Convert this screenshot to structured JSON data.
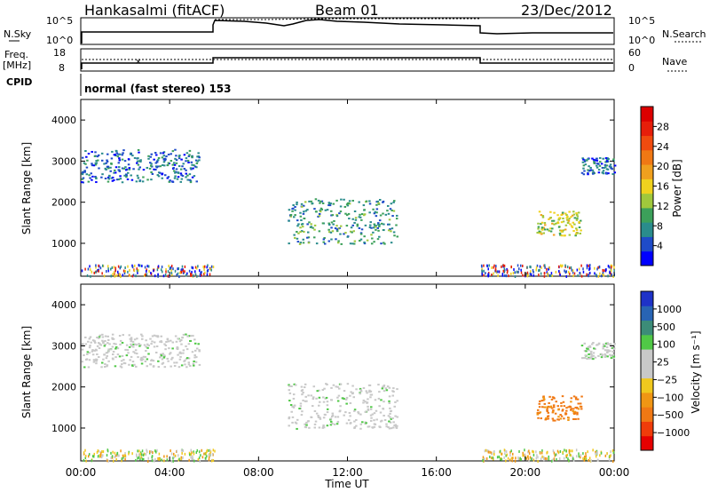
{
  "header": {
    "station": "Hankasalmi (fitACF)",
    "beam": "Beam 01",
    "date": "23/Dec/2012"
  },
  "noise_panel": {
    "left_label": "N.Sky",
    "right_label": "N.Search",
    "left_top_tick": "10^5",
    "left_bottom_tick": "10^0",
    "right_top_tick": "10^5",
    "right_bottom_tick": "10^0"
  },
  "freq_panel": {
    "left_label_1": "Freq.",
    "left_label_2": "[MHz]",
    "right_label": "Nave",
    "left_top_tick": "18",
    "left_bottom_tick": "8",
    "right_top_tick": "60",
    "right_bottom_tick": "0"
  },
  "cpid": {
    "label": "CPID",
    "text": "normal (fast stereo) 153"
  },
  "chart_data": [
    {
      "type": "heatmap",
      "title": "",
      "ylabel": "Slant Range [km]",
      "xlabel": "",
      "ylim": [
        200,
        4500
      ],
      "yticks": [
        "1000",
        "2000",
        "3000",
        "4000"
      ],
      "colorbar": {
        "label": "Power [dB]",
        "ticks": [
          "4",
          "8",
          "12",
          "16",
          "20",
          "24",
          "28"
        ],
        "colors": [
          "#0000ff",
          "#1e4bc8",
          "#2a8c8c",
          "#3ca05a",
          "#a0c83c",
          "#f0d21e",
          "#f0a01e",
          "#f07814",
          "#f04b0f",
          "#e61e0a",
          "#dc0000"
        ]
      },
      "regions": [
        {
          "t_start": 0.0,
          "t_end": 5.3,
          "range_start": 2500,
          "range_end": 3300,
          "level": 2
        },
        {
          "t_start": 9.3,
          "t_end": 14.2,
          "range_start": 1000,
          "range_end": 2100,
          "level": 3
        },
        {
          "t_start": 20.5,
          "t_end": 22.5,
          "range_start": 1200,
          "range_end": 1800,
          "level": 5
        },
        {
          "t_start": 22.5,
          "t_end": 24.0,
          "range_start": 2700,
          "range_end": 3100,
          "level": 2
        }
      ]
    },
    {
      "type": "heatmap",
      "title": "",
      "ylabel": "Slant Range [km]",
      "xlabel": "Time UT",
      "ylim": [
        200,
        4500
      ],
      "yticks": [
        "1000",
        "2000",
        "3000",
        "4000"
      ],
      "xticks": [
        "00:00",
        "04:00",
        "08:00",
        "12:00",
        "16:00",
        "20:00",
        "00:00"
      ],
      "colorbar": {
        "label": "Velocity [m s⁻¹]",
        "ticks": [
          "1000",
          "500",
          "100",
          "25",
          "−25",
          "−100",
          "−500",
          "−1000"
        ],
        "colors": [
          "#1e32c8",
          "#2864b4",
          "#3c8c78",
          "#50c846",
          "#c8c8c8",
          "#c8c8c8",
          "#f0c81e",
          "#f09614",
          "#f07814",
          "#f03c0a",
          "#e60000"
        ]
      },
      "regions": [
        {
          "t_start": 0.0,
          "t_end": 5.3,
          "range_start": 2500,
          "range_end": 3300,
          "velocity": 0
        },
        {
          "t_start": 9.3,
          "t_end": 14.2,
          "range_start": 1000,
          "range_end": 2100,
          "velocity": 0
        },
        {
          "t_start": 20.5,
          "t_end": 22.5,
          "range_start": 1200,
          "range_end": 1800,
          "velocity": -150
        },
        {
          "t_start": 22.5,
          "t_end": 24.0,
          "range_start": 2700,
          "range_end": 3100,
          "velocity": 0
        }
      ]
    }
  ]
}
